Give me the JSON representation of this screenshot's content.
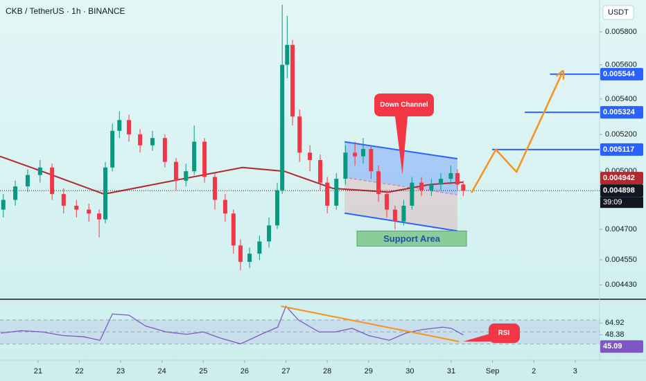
{
  "chart_data": {
    "type": "candlestick",
    "title": "CKB / TetherUS · 1h · BINANCE",
    "currency": "USDT",
    "log": true,
    "up_color": "#089981",
    "down_color": "#f23645",
    "xlim": [
      20.08,
      34.59
    ],
    "xticks": [
      21,
      22,
      23,
      24,
      25,
      26,
      27,
      28,
      29,
      30,
      31,
      {
        "value": 32,
        "label": "Sep"
      },
      {
        "value": 33,
        "label": "2"
      },
      {
        "value": 34,
        "label": "3"
      }
    ],
    "ylim": [
      0.004363,
      0.006
    ],
    "yticks": [
      {
        "value": 0.0058,
        "label": "0.005800"
      },
      {
        "value": 0.0056,
        "label": "0.005600"
      },
      {
        "value": 0.0054,
        "label": "0.005400"
      },
      {
        "value": 0.0052,
        "label": "0.005200"
      },
      {
        "value": 0.005,
        "label": "0.005000"
      },
      {
        "value": 0.0047,
        "label": "0.004700"
      },
      {
        "value": 0.00455,
        "label": "0.004550"
      },
      {
        "value": 0.00443,
        "label": "0.004430"
      }
    ],
    "x": [
      20.16,
      20.45,
      20.75,
      21.05,
      21.34,
      21.62,
      21.93,
      22.23,
      22.48,
      22.63,
      22.8,
      22.97,
      23.2,
      23.47,
      23.77,
      24.07,
      24.34,
      24.58,
      24.78,
      25.03,
      25.28,
      25.53,
      25.73,
      25.9,
      26.12,
      26.36,
      26.59,
      26.79,
      26.91,
      27.03,
      27.16,
      27.33,
      27.58,
      27.83,
      28.0,
      28.22,
      28.44,
      28.67,
      28.87,
      29.06,
      29.24,
      29.44,
      29.64,
      29.85,
      30.05,
      30.28,
      30.52,
      30.75,
      30.99,
      31.15,
      31.29
    ],
    "open": [
      0.0048,
      0.00485,
      0.00492,
      0.00498,
      0.00502,
      0.00488,
      0.00482,
      0.0048,
      0.00478,
      0.00475,
      0.00502,
      0.00522,
      0.00528,
      0.0052,
      0.00514,
      0.00518,
      0.00505,
      0.00495,
      0.005,
      0.00516,
      0.00497,
      0.00485,
      0.00478,
      0.00462,
      0.00454,
      0.00458,
      0.00464,
      0.00472,
      0.0049,
      0.0056,
      0.00572,
      0.0053,
      0.0051,
      0.00506,
      0.00494,
      0.00482,
      0.00496,
      0.0051,
      0.00508,
      0.00512,
      0.005,
      0.00488,
      0.0048,
      0.00474,
      0.00482,
      0.00494,
      0.0049,
      0.00493,
      0.00496,
      0.00499,
      0.00493
    ],
    "high": [
      0.00488,
      0.00495,
      0.00501,
      0.00506,
      0.00504,
      0.00491,
      0.00485,
      0.00483,
      0.0048,
      0.00505,
      0.00526,
      0.00533,
      0.00531,
      0.00523,
      0.00522,
      0.0052,
      0.00507,
      0.00504,
      0.00525,
      0.00518,
      0.00499,
      0.00488,
      0.0048,
      0.00465,
      0.00461,
      0.00467,
      0.00476,
      0.00494,
      0.00597,
      0.0059,
      0.00575,
      0.00534,
      0.00514,
      0.00509,
      0.00497,
      0.00499,
      0.00514,
      0.00516,
      0.00518,
      0.00514,
      0.00503,
      0.0049,
      0.00482,
      0.00485,
      0.00497,
      0.00497,
      0.00496,
      0.00499,
      0.00503,
      0.00501,
      0.00495
    ],
    "low": [
      0.00476,
      0.00482,
      0.00489,
      0.00494,
      0.00485,
      0.00478,
      0.00476,
      0.00474,
      0.00466,
      0.00473,
      0.005,
      0.00518,
      0.00516,
      0.0051,
      0.00511,
      0.00502,
      0.0049,
      0.00492,
      0.00498,
      0.00494,
      0.0048,
      0.00474,
      0.00458,
      0.0045,
      0.00451,
      0.00455,
      0.00461,
      0.0047,
      0.00488,
      0.00552,
      0.00525,
      0.00505,
      0.005,
      0.0049,
      0.00478,
      0.0048,
      0.00493,
      0.00503,
      0.00504,
      0.00496,
      0.00484,
      0.00476,
      0.0047,
      0.00472,
      0.0048,
      0.00487,
      0.00487,
      0.0049,
      0.00493,
      0.0049,
      0.00487
    ],
    "close": [
      0.00485,
      0.00492,
      0.00498,
      0.00502,
      0.00488,
      0.00482,
      0.0048,
      0.00478,
      0.00475,
      0.00502,
      0.00522,
      0.00528,
      0.0052,
      0.00514,
      0.00518,
      0.00505,
      0.00495,
      0.005,
      0.00516,
      0.00497,
      0.00485,
      0.00478,
      0.00462,
      0.00454,
      0.00458,
      0.00464,
      0.00472,
      0.0049,
      0.0056,
      0.00572,
      0.0053,
      0.0051,
      0.00506,
      0.00494,
      0.00482,
      0.00496,
      0.0051,
      0.00508,
      0.00512,
      0.005,
      0.00488,
      0.0048,
      0.00474,
      0.00482,
      0.00494,
      0.0049,
      0.00493,
      0.00496,
      0.00499,
      0.00493,
      0.004898
    ],
    "current": {
      "value": 0.004898,
      "label": "0.004898",
      "countdown": "39:09"
    },
    "ma": {
      "color": "#b2282f",
      "x": [
        20.08,
        21.09,
        22.6,
        24.27,
        25.95,
        26.96,
        28.13,
        29.48,
        30.48,
        31.29
      ],
      "values": [
        0.00508,
        0.005,
        0.00488,
        0.00495,
        0.00502,
        0.005,
        0.00491,
        0.00489,
        0.00493,
        0.004942
      ],
      "last": {
        "value": 0.004942,
        "label": "0.004942"
      }
    },
    "targets": {
      "color": "#2962ff",
      "x": [
        31.99,
        32.78,
        33.39
      ],
      "values": [
        0.005117,
        0.005324,
        0.005544
      ],
      "value_labels": [
        "0.005117",
        "0.005324",
        "0.005544"
      ]
    },
    "projection": {
      "color": "#f7931a",
      "x": [
        31.49,
        32.08,
        32.58,
        33.67
      ],
      "values": [
        0.004887,
        0.005117,
        0.004996,
        0.005544
      ]
    },
    "down_channel": {
      "label": "Down Channel",
      "x": [
        28.42,
        31.15
      ],
      "upper": [
        0.005159,
        0.005067
      ],
      "lower": [
        0.004782,
        0.004692
      ]
    },
    "support": {
      "label": "Support Area",
      "x": [
        28.72,
        31.37
      ],
      "range": [
        0.004617,
        0.004692
      ]
    },
    "rsi": {
      "label": "RSI",
      "color": "#7e57c2",
      "ylim": [
        5,
        100
      ],
      "bands": [
        70,
        50,
        30
      ],
      "x": [
        20.1,
        20.6,
        21.1,
        21.6,
        22.1,
        22.5,
        22.8,
        23.2,
        23.6,
        24.1,
        24.6,
        25.0,
        25.4,
        25.9,
        26.4,
        26.8,
        27.0,
        27.3,
        27.8,
        28.2,
        28.6,
        29.0,
        29.5,
        29.9,
        30.3,
        30.8,
        31.0,
        31.29
      ],
      "values": [
        48,
        52,
        50,
        44,
        42,
        36,
        80,
        78,
        60,
        50,
        46,
        50,
        40,
        30,
        46,
        58,
        93,
        70,
        50,
        50,
        56,
        44,
        36,
        48,
        54,
        58,
        56,
        45.09
      ],
      "levels": [
        {
          "value": 64.92,
          "label": "64.92"
        },
        {
          "value": 48.38,
          "label": "48.38"
        }
      ],
      "last": {
        "value": 45.09,
        "label": "45.09"
      },
      "trend": {
        "color": "#f7931a",
        "x": [
          26.88,
          31.19
        ],
        "values": [
          93,
          34
        ]
      }
    }
  }
}
